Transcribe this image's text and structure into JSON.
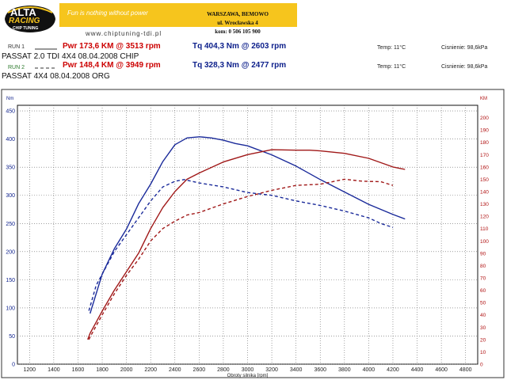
{
  "header": {
    "logo_line1": "ALTA",
    "logo_line2": "RACING",
    "logo_line3": "CHIP TUNING",
    "slogan": "Fun is nothing without power",
    "website": "www.chiptuning-tdi.pl",
    "address_line1": "WARSZAWA, BEMOWO",
    "address_line2": "ul. Wrocławska 4",
    "address_line3": "kom: 0 506 105 900"
  },
  "runs": [
    {
      "label": "RUN 1",
      "line_style": "solid",
      "label_color": "#333333",
      "power": "Pwr 173,6 KM @ 3513 rpm",
      "torque": "Tq 404,3 Nm @ 2603 rpm",
      "temp": "Temp: 11°C",
      "pressure": "Cisnienie: 98,6kPa",
      "description": "PASSAT  2.0 TDI   4X4 08.04.2008   CHIP"
    },
    {
      "label": "RUN 2",
      "line_style": "dashed",
      "label_color": "#2c7a2c",
      "power": "Pwr 148,4 KM @ 3949 rpm",
      "torque": "Tq 328,3 Nm @ 2477 rpm",
      "temp": "Temp: 11°C",
      "pressure": "Cisnienie: 98,6kPa",
      "description": "PASSAT 4X4   08.04.2008   ORG"
    }
  ],
  "chart_data": {
    "type": "line",
    "title": "",
    "xlabel": "Obroty silnika [rpm]",
    "ylabel": "Nm",
    "y2label": "KM",
    "xlim": [
      1100,
      4900
    ],
    "ylim": [
      0,
      460
    ],
    "y2lim": [
      0,
      210
    ],
    "xticks": [
      1200,
      1400,
      1600,
      1800,
      2000,
      2200,
      2400,
      2600,
      2800,
      3000,
      3200,
      3400,
      3600,
      3800,
      4000,
      4200,
      4400,
      4600,
      4800
    ],
    "yticks": [
      0,
      50,
      100,
      150,
      200,
      250,
      300,
      350,
      400,
      450
    ],
    "y2ticks": [
      0,
      10,
      20,
      30,
      40,
      50,
      60,
      70,
      80,
      90,
      100,
      110,
      120,
      130,
      140,
      150,
      160,
      170,
      180,
      190,
      200
    ],
    "grid": true,
    "series": [
      {
        "name": "RUN 1",
        "quantity": "torque",
        "axis": "left",
        "style": "solid",
        "color": "#1a2a9a",
        "x": [
          1700,
          1800,
          1900,
          2000,
          2100,
          2200,
          2300,
          2400,
          2500,
          2603,
          2700,
          2800,
          2900,
          3000,
          3200,
          3400,
          3600,
          3800,
          4000,
          4200,
          4300
        ],
        "y": [
          90,
          160,
          205,
          240,
          285,
          320,
          360,
          390,
          402,
          404,
          402,
          398,
          392,
          388,
          372,
          352,
          328,
          306,
          284,
          266,
          258
        ]
      },
      {
        "name": "RUN 2",
        "quantity": "torque",
        "axis": "left",
        "style": "dashed",
        "color": "#1a2a9a",
        "x": [
          1690,
          1750,
          1800,
          1900,
          2000,
          2100,
          2200,
          2300,
          2400,
          2477,
          2600,
          2800,
          3000,
          3200,
          3400,
          3600,
          3800,
          4000,
          4100,
          4200
        ],
        "y": [
          95,
          140,
          160,
          200,
          230,
          260,
          290,
          315,
          325,
          328,
          322,
          315,
          305,
          300,
          290,
          282,
          272,
          260,
          250,
          243
        ]
      },
      {
        "name": "RUN 1",
        "quantity": "power",
        "axis": "right",
        "style": "solid",
        "color": "#a01818",
        "x": [
          1680,
          1700,
          1800,
          1900,
          2000,
          2100,
          2200,
          2300,
          2400,
          2500,
          2600,
          2800,
          3000,
          3200,
          3400,
          3513,
          3600,
          3800,
          4000,
          4200,
          4300
        ],
        "y": [
          20,
          25,
          43,
          60,
          75,
          90,
          110,
          127,
          140,
          150,
          155,
          164,
          170,
          174,
          173.6,
          173.6,
          173,
          171,
          167,
          160,
          158
        ]
      },
      {
        "name": "RUN 2",
        "quantity": "power",
        "axis": "right",
        "style": "dashed",
        "color": "#a01818",
        "x": [
          1690,
          1700,
          1800,
          1900,
          2000,
          2100,
          2200,
          2300,
          2400,
          2500,
          2600,
          2800,
          3000,
          3200,
          3400,
          3600,
          3800,
          3949,
          4100,
          4200
        ],
        "y": [
          20,
          22,
          40,
          57,
          72,
          85,
          100,
          110,
          116,
          121,
          123,
          130,
          136,
          141,
          145,
          146,
          150,
          148.4,
          148,
          145
        ]
      }
    ]
  }
}
